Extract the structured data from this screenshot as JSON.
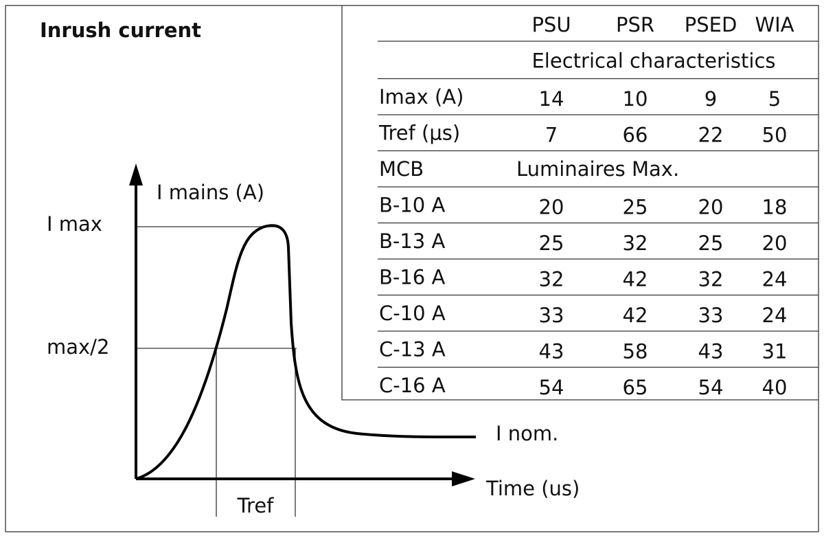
{
  "title": "Inrush current",
  "diagram": {
    "y_axis_label": "I mains (A)",
    "imax_label": "I max",
    "half_label": "max/2",
    "nominal_label": "I nom.",
    "x_axis_label": "Time (us)",
    "tref_label": "Tref"
  },
  "table": {
    "columns": [
      "PSU",
      "PSR",
      "PSED",
      "WIA"
    ],
    "section_1": "Electrical characteristics",
    "rows_1": [
      [
        "Imax (A)",
        14,
        10,
        9,
        5
      ],
      [
        "Tref (μs)",
        7,
        66,
        22,
        50
      ]
    ],
    "section_2": [
      "MCB",
      "Luminaires Max."
    ],
    "rows_2": [
      [
        "B-10 A",
        20,
        25,
        20,
        18
      ],
      [
        "B-13 A",
        25,
        32,
        25,
        20
      ],
      [
        "B-16 A",
        32,
        42,
        32,
        24
      ],
      [
        "C-10 A",
        33,
        42,
        33,
        24
      ],
      [
        "C-13 A",
        43,
        58,
        43,
        31
      ],
      [
        "C-16 A",
        54,
        65,
        54,
        40
      ]
    ]
  }
}
